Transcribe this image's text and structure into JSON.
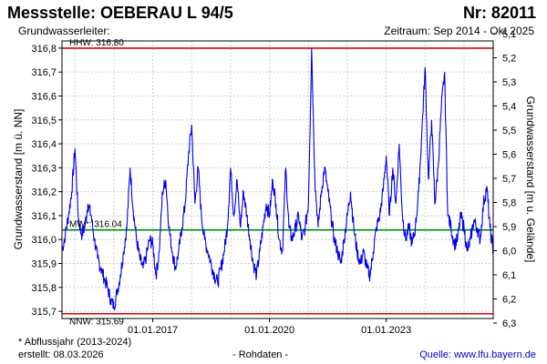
{
  "header": {
    "title": "Messstelle: OEBERAU L 94/5",
    "station_number": "Nr: 82011",
    "aquifer_label": "Grundwasserleiter:",
    "period": "Zeitraum: Sep 2014 - Okt 2025"
  },
  "footer": {
    "footnote": "* Abflussjahr (2013-2024)",
    "created": "erstellt:  08.03.2026",
    "rawdata": "- Rohdaten -",
    "source": "Quelle:  www.lfu.bayern.de"
  },
  "colors": {
    "series": "#0000ee",
    "hhw": "#dd0000",
    "nnw": "#dd0000",
    "mw": "#008800",
    "grid": "#cccccc"
  },
  "chart_data": {
    "type": "line",
    "ylabel": "Grundwasserstand [m ü. NN]",
    "y2label": "Grundwasserstand [m u. Gelände]",
    "ylim": [
      315.67,
      316.83
    ],
    "y_ticks": [
      "315,7",
      "315,8",
      "315,9",
      "316,0",
      "316,1",
      "316,2",
      "316,3",
      "316,4",
      "316,5",
      "316,6",
      "316,7",
      "316,8"
    ],
    "y2_ticks": [
      "6,3",
      "6,2",
      "6,1",
      "6,0",
      "5,9",
      "5,8",
      "5,7",
      "5,6",
      "5,5",
      "5,4",
      "5,3",
      "5,2",
      "5,1"
    ],
    "x_range": [
      "2014-09",
      "2025-10"
    ],
    "x_ticks": [
      {
        "date": "2017-01",
        "label": "01.01.2017"
      },
      {
        "date": "2020-01",
        "label": "01.01.2020"
      },
      {
        "date": "2023-01",
        "label": "01.01.2023"
      }
    ],
    "grid": true,
    "reference_lines": [
      {
        "name": "HHW",
        "value": 316.8,
        "label": "HHW: 316.80"
      },
      {
        "name": "MW",
        "value": 316.04,
        "label": "MW*: 316.04"
      },
      {
        "name": "NNW",
        "value": 315.69,
        "label": "NNW: 315.69"
      }
    ],
    "series": [
      {
        "values": [
          [
            "2014-09",
            315.95
          ],
          [
            "2014-10",
            316.02
          ],
          [
            "2014-11",
            316.1
          ],
          [
            "2014-12",
            316.2
          ],
          [
            "2015-01",
            316.38
          ],
          [
            "2015-02",
            316.1
          ],
          [
            "2015-03",
            316.02
          ],
          [
            "2015-04",
            316.05
          ],
          [
            "2015-05",
            316.15
          ],
          [
            "2015-06",
            316.1
          ],
          [
            "2015-07",
            316.0
          ],
          [
            "2015-08",
            315.92
          ],
          [
            "2015-09",
            315.88
          ],
          [
            "2015-10",
            315.84
          ],
          [
            "2015-11",
            315.8
          ],
          [
            "2015-12",
            315.75
          ],
          [
            "2016-01",
            315.72
          ],
          [
            "2016-02",
            315.78
          ],
          [
            "2016-03",
            315.85
          ],
          [
            "2016-04",
            315.95
          ],
          [
            "2016-05",
            316.05
          ],
          [
            "2016-06",
            316.3
          ],
          [
            "2016-07",
            316.12
          ],
          [
            "2016-08",
            316.0
          ],
          [
            "2016-09",
            315.92
          ],
          [
            "2016-10",
            315.88
          ],
          [
            "2016-11",
            315.93
          ],
          [
            "2016-12",
            316.0
          ],
          [
            "2017-01",
            315.98
          ],
          [
            "2017-02",
            315.85
          ],
          [
            "2017-03",
            315.95
          ],
          [
            "2017-04",
            316.2
          ],
          [
            "2017-05",
            316.25
          ],
          [
            "2017-06",
            316.05
          ],
          [
            "2017-07",
            315.95
          ],
          [
            "2017-08",
            315.88
          ],
          [
            "2017-09",
            315.95
          ],
          [
            "2017-10",
            316.05
          ],
          [
            "2017-11",
            316.15
          ],
          [
            "2017-12",
            316.35
          ],
          [
            "2018-01",
            316.48
          ],
          [
            "2018-02",
            316.15
          ],
          [
            "2018-03",
            316.3
          ],
          [
            "2018-04",
            316.1
          ],
          [
            "2018-05",
            316.0
          ],
          [
            "2018-06",
            315.95
          ],
          [
            "2018-07",
            315.9
          ],
          [
            "2018-08",
            315.85
          ],
          [
            "2018-09",
            315.82
          ],
          [
            "2018-10",
            315.88
          ],
          [
            "2018-11",
            315.95
          ],
          [
            "2018-12",
            316.05
          ],
          [
            "2019-01",
            316.3
          ],
          [
            "2019-02",
            316.1
          ],
          [
            "2019-03",
            316.25
          ],
          [
            "2019-04",
            316.05
          ],
          [
            "2019-05",
            316.2
          ],
          [
            "2019-06",
            316.1
          ],
          [
            "2019-07",
            316.0
          ],
          [
            "2019-08",
            315.9
          ],
          [
            "2019-09",
            315.85
          ],
          [
            "2019-10",
            315.95
          ],
          [
            "2019-11",
            316.05
          ],
          [
            "2019-12",
            316.15
          ],
          [
            "2020-01",
            316.1
          ],
          [
            "2020-02",
            316.25
          ],
          [
            "2020-03",
            316.15
          ],
          [
            "2020-04",
            316.0
          ],
          [
            "2020-05",
            315.95
          ],
          [
            "2020-06",
            316.3
          ],
          [
            "2020-07",
            316.05
          ],
          [
            "2020-08",
            316.0
          ],
          [
            "2020-09",
            316.05
          ],
          [
            "2020-10",
            316.1
          ],
          [
            "2020-11",
            316.0
          ],
          [
            "2020-12",
            316.05
          ],
          [
            "2021-01",
            316.15
          ],
          [
            "2021-02",
            316.8
          ],
          [
            "2021-03",
            316.25
          ],
          [
            "2021-04",
            316.05
          ],
          [
            "2021-05",
            316.2
          ],
          [
            "2021-06",
            316.3
          ],
          [
            "2021-07",
            316.2
          ],
          [
            "2021-08",
            316.1
          ],
          [
            "2021-09",
            316.0
          ],
          [
            "2021-10",
            315.95
          ],
          [
            "2021-11",
            315.9
          ],
          [
            "2021-12",
            316.0
          ],
          [
            "2022-01",
            316.1
          ],
          [
            "2022-02",
            316.2
          ],
          [
            "2022-03",
            316.05
          ],
          [
            "2022-04",
            315.95
          ],
          [
            "2022-05",
            315.9
          ],
          [
            "2022-06",
            315.95
          ],
          [
            "2022-07",
            315.88
          ],
          [
            "2022-08",
            315.85
          ],
          [
            "2022-09",
            315.95
          ],
          [
            "2022-10",
            316.05
          ],
          [
            "2022-11",
            316.1
          ],
          [
            "2022-12",
            316.2
          ],
          [
            "2023-01",
            316.35
          ],
          [
            "2023-02",
            316.1
          ],
          [
            "2023-03",
            316.3
          ],
          [
            "2023-04",
            316.15
          ],
          [
            "2023-05",
            316.4
          ],
          [
            "2023-06",
            316.1
          ],
          [
            "2023-07",
            316.0
          ],
          [
            "2023-08",
            316.05
          ],
          [
            "2023-09",
            315.98
          ],
          [
            "2023-10",
            316.05
          ],
          [
            "2023-11",
            316.2
          ],
          [
            "2023-12",
            316.45
          ],
          [
            "2024-01",
            316.72
          ],
          [
            "2024-02",
            316.25
          ],
          [
            "2024-03",
            316.5
          ],
          [
            "2024-04",
            316.15
          ],
          [
            "2024-05",
            316.3
          ],
          [
            "2024-06",
            316.55
          ],
          [
            "2024-07",
            316.7
          ],
          [
            "2024-08",
            316.1
          ],
          [
            "2024-09",
            316.05
          ],
          [
            "2024-10",
            315.98
          ],
          [
            "2024-11",
            316.0
          ],
          [
            "2024-12",
            316.1
          ],
          [
            "2025-01",
            316.05
          ],
          [
            "2025-02",
            315.95
          ],
          [
            "2025-03",
            316.0
          ],
          [
            "2025-04",
            316.08
          ],
          [
            "2025-05",
            316.05
          ],
          [
            "2025-06",
            316.0
          ],
          [
            "2025-07",
            316.15
          ],
          [
            "2025-08",
            316.22
          ],
          [
            "2025-09",
            316.05
          ],
          [
            "2025-10",
            315.95
          ]
        ]
      }
    ]
  }
}
